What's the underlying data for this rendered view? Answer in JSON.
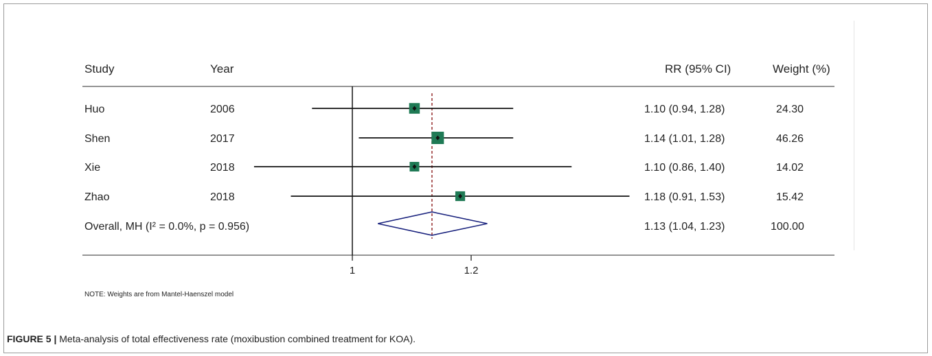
{
  "chart_data": {
    "type": "forest",
    "headers": {
      "study": "Study",
      "year": "Year",
      "effect": "RR (95% CI)",
      "weight": "Weight (%)"
    },
    "studies": [
      {
        "study": "Huo",
        "year": "2006",
        "rr": 1.1,
        "lo": 0.94,
        "hi": 1.28,
        "ci_text": "1.10 (0.94, 1.28)",
        "weight": 24.3,
        "weight_text": "24.30"
      },
      {
        "study": "Shen",
        "year": "2017",
        "rr": 1.14,
        "lo": 1.01,
        "hi": 1.28,
        "ci_text": "1.14 (1.01, 1.28)",
        "weight": 46.26,
        "weight_text": "46.26"
      },
      {
        "study": "Xie",
        "year": "2018",
        "rr": 1.1,
        "lo": 0.86,
        "hi": 1.4,
        "ci_text": "1.10 (0.86, 1.40)",
        "weight": 14.02,
        "weight_text": "14.02"
      },
      {
        "study": "Zhao",
        "year": "2018",
        "rr": 1.18,
        "lo": 0.91,
        "hi": 1.53,
        "ci_text": "1.18 (0.91, 1.53)",
        "weight": 15.42,
        "weight_text": "15.42"
      }
    ],
    "overall": {
      "label": "Overall, MH (I² = 0.0%, p = 0.956)",
      "rr": 1.13,
      "lo": 1.04,
      "hi": 1.23,
      "ci_text": "1.13 (1.04, 1.23)",
      "weight_text": "100.00"
    },
    "x_scale": "log",
    "x_ticks": [
      {
        "value": 1,
        "label": "1"
      },
      {
        "value": 1.2,
        "label": "1.2"
      }
    ],
    "null_value": 1,
    "note": "NOTE: Weights are from Mantel-Haenszel model",
    "colors": {
      "box": "#1f7a55",
      "diamond": "#1a237e",
      "overall_line": "#8b1a1a",
      "ci_line": "#111111"
    }
  },
  "caption": {
    "label": "FIGURE 5 |",
    "text": " Meta-analysis of total effectiveness rate (moxibustion combined treatment for KOA)."
  }
}
